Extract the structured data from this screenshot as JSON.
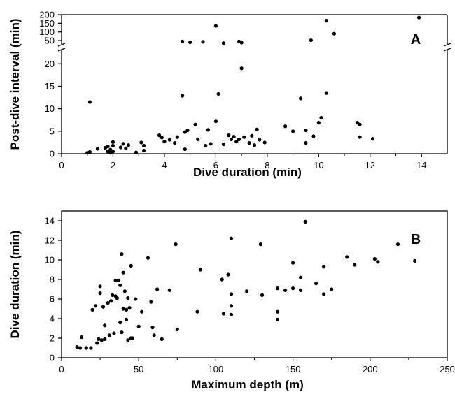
{
  "chart_data": [
    {
      "panel_label": "A",
      "type": "scatter",
      "xlabel": "Dive duration (min)",
      "ylabel": "Post-dive interval (min)",
      "xlim": [
        0,
        15
      ],
      "ylim_lower": [
        0,
        23
      ],
      "ylim_upper": [
        30,
        200
      ],
      "axis_break": "y between 23 and 30",
      "xticks": [
        0,
        2,
        4,
        6,
        8,
        10,
        12,
        14
      ],
      "yticks_lower": [
        0,
        5,
        10,
        15,
        20
      ],
      "yticks_upper": [
        50,
        100,
        150,
        200
      ],
      "legend": "none",
      "grid": false,
      "points": [
        [
          1.0,
          0.2
        ],
        [
          1.1,
          0.4
        ],
        [
          1.1,
          11.5
        ],
        [
          1.4,
          1.1
        ],
        [
          1.7,
          1.3
        ],
        [
          1.8,
          0.5
        ],
        [
          1.8,
          1.6
        ],
        [
          1.9,
          0.9
        ],
        [
          1.9,
          0.2
        ],
        [
          2.0,
          1.8
        ],
        [
          2.0,
          0.5
        ],
        [
          2.0,
          2.6
        ],
        [
          2.3,
          1.4
        ],
        [
          2.4,
          2.2
        ],
        [
          2.5,
          1.2
        ],
        [
          2.6,
          1.9
        ],
        [
          2.9,
          0.3
        ],
        [
          3.1,
          2.5
        ],
        [
          3.2,
          1.8
        ],
        [
          3.2,
          0.7
        ],
        [
          3.8,
          4.1
        ],
        [
          3.9,
          3.6
        ],
        [
          4.0,
          2.7
        ],
        [
          4.2,
          3.1
        ],
        [
          4.4,
          2.4
        ],
        [
          4.5,
          3.7
        ],
        [
          4.7,
          12.9
        ],
        [
          4.8,
          1.0
        ],
        [
          4.8,
          4.8
        ],
        [
          4.9,
          5.2
        ],
        [
          5.2,
          6.5
        ],
        [
          5.3,
          3.2
        ],
        [
          5.6,
          1.8
        ],
        [
          5.7,
          5.3
        ],
        [
          5.8,
          2.2
        ],
        [
          6.0,
          7.2
        ],
        [
          6.1,
          13.3
        ],
        [
          6.3,
          2.1
        ],
        [
          6.5,
          4.1
        ],
        [
          6.6,
          3.2
        ],
        [
          6.7,
          3.8
        ],
        [
          6.8,
          2.7
        ],
        [
          6.9,
          3.2
        ],
        [
          7.0,
          19.0
        ],
        [
          7.1,
          3.7
        ],
        [
          7.3,
          2.4
        ],
        [
          7.4,
          4.0
        ],
        [
          7.5,
          1.9
        ],
        [
          7.6,
          5.4
        ],
        [
          7.7,
          3.1
        ],
        [
          7.9,
          2.5
        ],
        [
          8.7,
          6.1
        ],
        [
          9.0,
          5.0
        ],
        [
          9.3,
          12.3
        ],
        [
          9.5,
          2.4
        ],
        [
          9.5,
          5.2
        ],
        [
          9.8,
          3.9
        ],
        [
          10.0,
          6.9
        ],
        [
          10.1,
          8.0
        ],
        [
          10.3,
          13.5
        ],
        [
          11.5,
          6.9
        ],
        [
          11.6,
          6.5
        ],
        [
          11.6,
          3.7
        ],
        [
          12.1,
          3.3
        ],
        [
          4.7,
          45
        ],
        [
          5.0,
          40
        ],
        [
          5.5,
          43
        ],
        [
          6.0,
          135
        ],
        [
          6.3,
          35
        ],
        [
          6.9,
          45
        ],
        [
          7.0,
          38
        ],
        [
          9.7,
          52
        ],
        [
          10.3,
          165
        ],
        [
          10.6,
          90
        ],
        [
          13.9,
          183
        ]
      ]
    },
    {
      "panel_label": "B",
      "type": "scatter",
      "xlabel": "Maximum depth (m)",
      "ylabel": "Dive duration (min)",
      "xlim": [
        0,
        250
      ],
      "ylim": [
        0,
        15
      ],
      "xticks": [
        0,
        50,
        100,
        150,
        200,
        250
      ],
      "yticks": [
        0,
        2,
        4,
        6,
        8,
        10,
        12,
        14
      ],
      "legend": "none",
      "grid": false,
      "points": [
        [
          10,
          1.1
        ],
        [
          12,
          1.0
        ],
        [
          13,
          2.1
        ],
        [
          16,
          1.0
        ],
        [
          19,
          1.0
        ],
        [
          20,
          4.9
        ],
        [
          22,
          5.3
        ],
        [
          23,
          1.5
        ],
        [
          24,
          1.9
        ],
        [
          25,
          7.3
        ],
        [
          25,
          6.6
        ],
        [
          26,
          1.8
        ],
        [
          27,
          5.2
        ],
        [
          28,
          3.3
        ],
        [
          28,
          1.9
        ],
        [
          30,
          5.6
        ],
        [
          31,
          2.3
        ],
        [
          32,
          5.8
        ],
        [
          33,
          6.4
        ],
        [
          34,
          2.5
        ],
        [
          35,
          6.3
        ],
        [
          35,
          7.9
        ],
        [
          36,
          6.1
        ],
        [
          37,
          7.9
        ],
        [
          38,
          3.6
        ],
        [
          38,
          7.4
        ],
        [
          39,
          10.6
        ],
        [
          39,
          2.6
        ],
        [
          40,
          5.0
        ],
        [
          40,
          8.7
        ],
        [
          41,
          6.8
        ],
        [
          42,
          4.9
        ],
        [
          42,
          3.9
        ],
        [
          43,
          6.1
        ],
        [
          43,
          1.8
        ],
        [
          44,
          5.1
        ],
        [
          45,
          9.4
        ],
        [
          45,
          2.0
        ],
        [
          46,
          2.0
        ],
        [
          48,
          6.0
        ],
        [
          50,
          3.2
        ],
        [
          52,
          4.7
        ],
        [
          56,
          10.2
        ],
        [
          58,
          5.7
        ],
        [
          59,
          3.1
        ],
        [
          60,
          2.3
        ],
        [
          62,
          7.0
        ],
        [
          65,
          1.9
        ],
        [
          70,
          6.9
        ],
        [
          74,
          11.6
        ],
        [
          75,
          2.9
        ],
        [
          88,
          4.7
        ],
        [
          90,
          9.0
        ],
        [
          104,
          8.0
        ],
        [
          105,
          4.5
        ],
        [
          108,
          8.5
        ],
        [
          110,
          12.2
        ],
        [
          110,
          5.3
        ],
        [
          110,
          4.4
        ],
        [
          110,
          6.5
        ],
        [
          120,
          6.8
        ],
        [
          129,
          11.6
        ],
        [
          130,
          6.4
        ],
        [
          140,
          7.1
        ],
        [
          140,
          4.7
        ],
        [
          140,
          3.9
        ],
        [
          145,
          6.9
        ],
        [
          150,
          7.1
        ],
        [
          150,
          9.7
        ],
        [
          155,
          6.9
        ],
        [
          155,
          8.2
        ],
        [
          158,
          13.9
        ],
        [
          165,
          7.6
        ],
        [
          170,
          6.5
        ],
        [
          170,
          9.3
        ],
        [
          175,
          7.0
        ],
        [
          185,
          10.3
        ],
        [
          190,
          9.5
        ],
        [
          203,
          10.1
        ],
        [
          205,
          9.8
        ],
        [
          218,
          11.6
        ],
        [
          229,
          9.9
        ]
      ]
    }
  ]
}
